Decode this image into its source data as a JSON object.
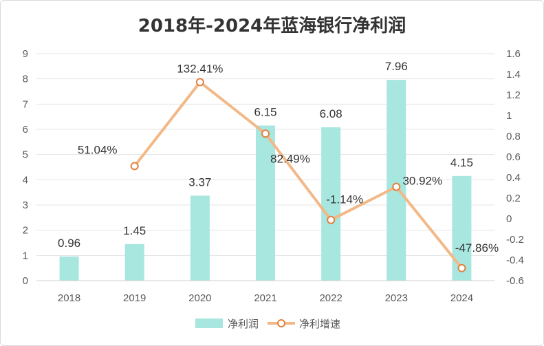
{
  "chart_data": {
    "type": "bar",
    "title": "2018年-2024年蓝海银行净利润",
    "categories": [
      "2018",
      "2019",
      "2020",
      "2021",
      "2022",
      "2023",
      "2024"
    ],
    "series": [
      {
        "name": "净利润",
        "type": "bar",
        "axis": "left",
        "color": "#A8E6E0",
        "values": [
          0.96,
          1.45,
          3.37,
          6.15,
          6.08,
          7.96,
          4.15
        ],
        "labels": [
          "0.96",
          "1.45",
          "3.37",
          "6.15",
          "6.08",
          "7.96",
          "4.15"
        ]
      },
      {
        "name": "净利增速",
        "type": "line",
        "axis": "right",
        "color": "#F2B887",
        "marker_color": "#E0813F",
        "values": [
          null,
          0.5104,
          1.3241,
          0.8249,
          -0.0114,
          0.3092,
          -0.4786
        ],
        "labels": [
          "",
          "51.04%",
          "132.41%",
          "82.49%",
          "-1.14%",
          "30.92%",
          "-47.86%"
        ]
      }
    ],
    "y_left": {
      "min": 0,
      "max": 9,
      "ticks": [
        "0",
        "1",
        "2",
        "3",
        "4",
        "5",
        "6",
        "7",
        "8",
        "9"
      ]
    },
    "y_right": {
      "min": -0.6,
      "max": 1.6,
      "ticks": [
        "-0.6",
        "-0.4",
        "-0.2",
        "0",
        "0.2",
        "0.4",
        "0.6",
        "0.8",
        "1",
        "1.2",
        "1.4",
        "1.6"
      ]
    },
    "grid": true,
    "legend_position": "bottom"
  }
}
